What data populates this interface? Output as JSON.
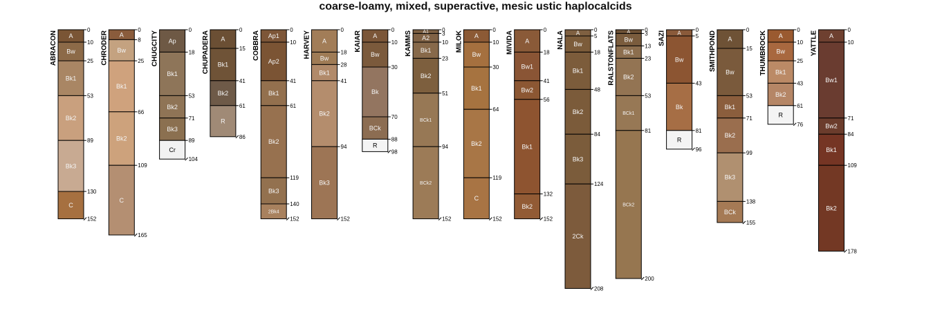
{
  "title": "coarse-loamy, mixed, superactive, mesic ustic haplocalcids",
  "profiles": [
    {
      "name": "ABRACON",
      "bottom": 152,
      "horizons": [
        {
          "name": "A",
          "top": 0,
          "bottom": 10,
          "color": "#7a5535"
        },
        {
          "name": "Bw",
          "top": 10,
          "bottom": 25,
          "color": "#8c6a48"
        },
        {
          "name": "Bk1",
          "top": 25,
          "bottom": 53,
          "color": "#a98664"
        },
        {
          "name": "Bk2",
          "top": 53,
          "bottom": 89,
          "color": "#c9a07e"
        },
        {
          "name": "Bk3",
          "top": 89,
          "bottom": 130,
          "color": "#c8aa92"
        },
        {
          "name": "C",
          "top": 130,
          "bottom": 152,
          "color": "#a67040"
        }
      ]
    },
    {
      "name": "CHRODER",
      "bottom": 165,
      "horizons": [
        {
          "name": "A",
          "top": 0,
          "bottom": 8,
          "color": "#8a5c3c"
        },
        {
          "name": "Bw",
          "top": 8,
          "bottom": 25,
          "color": "#c4a280"
        },
        {
          "name": "Bk1",
          "top": 25,
          "bottom": 66,
          "color": "#cfa27d"
        },
        {
          "name": "Bk2",
          "top": 66,
          "bottom": 109,
          "color": "#cda27c"
        },
        {
          "name": "C",
          "top": 109,
          "bottom": 165,
          "color": "#b48f72"
        }
      ]
    },
    {
      "name": "CHUGCITY",
      "bottom": 104,
      "horizons": [
        {
          "name": "Ap",
          "top": 0,
          "bottom": 18,
          "color": "#6e5945"
        },
        {
          "name": "Bk1",
          "top": 18,
          "bottom": 53,
          "color": "#8e7559"
        },
        {
          "name": "Bk2",
          "top": 53,
          "bottom": 71,
          "color": "#8f7456"
        },
        {
          "name": "Bk3",
          "top": 71,
          "bottom": 89,
          "color": "#8b7050"
        },
        {
          "name": "Cr",
          "top": 89,
          "bottom": 104,
          "color": "#f2f2f2"
        }
      ]
    },
    {
      "name": "CHUPADERA",
      "bottom": 86,
      "horizons": [
        {
          "name": "A",
          "top": 0,
          "bottom": 15,
          "color": "#6b4f34"
        },
        {
          "name": "Bk1",
          "top": 15,
          "bottom": 41,
          "color": "#6f5337"
        },
        {
          "name": "Bk2",
          "top": 41,
          "bottom": 61,
          "color": "#6e5a48"
        },
        {
          "name": "R",
          "top": 61,
          "bottom": 86,
          "color": "#a08a76"
        }
      ]
    },
    {
      "name": "COBBRA",
      "bottom": 152,
      "horizons": [
        {
          "name": "Ap1",
          "top": 0,
          "bottom": 10,
          "color": "#7d5638"
        },
        {
          "name": "Ap2",
          "top": 10,
          "bottom": 41,
          "color": "#7b5434"
        },
        {
          "name": "Bk1",
          "top": 41,
          "bottom": 61,
          "color": "#93704e"
        },
        {
          "name": "Bk2",
          "top": 61,
          "bottom": 119,
          "color": "#97714f"
        },
        {
          "name": "Bk3",
          "top": 119,
          "bottom": 140,
          "color": "#93714f"
        },
        {
          "name": "2Bk4",
          "top": 140,
          "bottom": 152,
          "color": "#a8815e"
        }
      ]
    },
    {
      "name": "HARVEY",
      "bottom": 152,
      "horizons": [
        {
          "name": "A",
          "top": 0,
          "bottom": 18,
          "color": "#a27d58"
        },
        {
          "name": "Bw",
          "top": 18,
          "bottom": 28,
          "color": "#9f7b55"
        },
        {
          "name": "Bk1",
          "top": 28,
          "bottom": 41,
          "color": "#b18a6a"
        },
        {
          "name": "Bk2",
          "top": 41,
          "bottom": 94,
          "color": "#b48d6d"
        },
        {
          "name": "Bk3",
          "top": 94,
          "bottom": 152,
          "color": "#9d7555"
        }
      ]
    },
    {
      "name": "KAIAR",
      "bottom": 98,
      "horizons": [
        {
          "name": "A",
          "top": 0,
          "bottom": 10,
          "color": "#7b5638"
        },
        {
          "name": "Bw",
          "top": 10,
          "bottom": 30,
          "color": "#7b5a3c"
        },
        {
          "name": "Bk",
          "top": 30,
          "bottom": 70,
          "color": "#937560"
        },
        {
          "name": "BCk",
          "top": 70,
          "bottom": 88,
          "color": "#8c6d52"
        },
        {
          "name": "R",
          "top": 88,
          "bottom": 98,
          "color": "#f4f4f4"
        }
      ]
    },
    {
      "name": "KAMMS",
      "bottom": 152,
      "horizons": [
        {
          "name": "A1",
          "top": 0,
          "bottom": 3,
          "color": "#7d6043"
        },
        {
          "name": "A2",
          "top": 3,
          "bottom": 10,
          "color": "#806245"
        },
        {
          "name": "Bk1",
          "top": 10,
          "bottom": 23,
          "color": "#87694a"
        },
        {
          "name": "Bk2",
          "top": 23,
          "bottom": 51,
          "color": "#7d5f3e"
        },
        {
          "name": "BCk1",
          "top": 51,
          "bottom": 94,
          "color": "#977855"
        },
        {
          "name": "BCk2",
          "top": 94,
          "bottom": 152,
          "color": "#9c7b57"
        }
      ]
    },
    {
      "name": "MILOK",
      "bottom": 152,
      "horizons": [
        {
          "name": "A",
          "top": 0,
          "bottom": 10,
          "color": "#8c5a35"
        },
        {
          "name": "Bw",
          "top": 10,
          "bottom": 30,
          "color": "#a5703f"
        },
        {
          "name": "Bk1",
          "top": 30,
          "bottom": 64,
          "color": "#a67340"
        },
        {
          "name": "Bk2",
          "top": 64,
          "bottom": 119,
          "color": "#a87646"
        },
        {
          "name": "C",
          "top": 119,
          "bottom": 152,
          "color": "#a87444"
        }
      ]
    },
    {
      "name": "MIVIDA",
      "bottom": 152,
      "horizons": [
        {
          "name": "A",
          "top": 0,
          "bottom": 18,
          "color": "#8a5a38"
        },
        {
          "name": "Bw1",
          "top": 18,
          "bottom": 41,
          "color": "#8a5535"
        },
        {
          "name": "Bw2",
          "top": 41,
          "bottom": 56,
          "color": "#8c5733"
        },
        {
          "name": "Bk1",
          "top": 56,
          "bottom": 132,
          "color": "#8e5430"
        },
        {
          "name": "Bk2",
          "top": 132,
          "bottom": 152,
          "color": "#925b35"
        }
      ]
    },
    {
      "name": "NALA",
      "bottom": 208,
      "horizons": [
        {
          "name": "A",
          "top": 0,
          "bottom": 5,
          "color": "#7f6041"
        },
        {
          "name": "Bw",
          "top": 5,
          "bottom": 18,
          "color": "#7c5c3a"
        },
        {
          "name": "Bk1",
          "top": 18,
          "bottom": 48,
          "color": "#7c5c3b"
        },
        {
          "name": "Bk2",
          "top": 48,
          "bottom": 84,
          "color": "#7b5b3a"
        },
        {
          "name": "Bk3",
          "top": 84,
          "bottom": 124,
          "color": "#7b5c3b"
        },
        {
          "name": "2Ck",
          "top": 124,
          "bottom": 208,
          "color": "#7d5b3c"
        }
      ]
    },
    {
      "name": "RALSTONFLATS",
      "bottom": 200,
      "horizons": [
        {
          "name": "A",
          "top": 0,
          "bottom": 3,
          "color": "#6e5236"
        },
        {
          "name": "Bw",
          "top": 3,
          "bottom": 13,
          "color": "#7a5c3d"
        },
        {
          "name": "Bk1",
          "top": 13,
          "bottom": 23,
          "color": "#8c6e4e"
        },
        {
          "name": "Bk2",
          "top": 23,
          "bottom": 53,
          "color": "#937453"
        },
        {
          "name": "BCk1",
          "top": 53,
          "bottom": 81,
          "color": "#977855"
        },
        {
          "name": "BCk2",
          "top": 81,
          "bottom": 200,
          "color": "#967650"
        }
      ]
    },
    {
      "name": "SAZI",
      "bottom": 96,
      "horizons": [
        {
          "name": "A",
          "top": 0,
          "bottom": 5,
          "color": "#8a5a3a"
        },
        {
          "name": "Bw",
          "top": 5,
          "bottom": 43,
          "color": "#8c5532"
        },
        {
          "name": "Bk",
          "top": 43,
          "bottom": 81,
          "color": "#a66e45"
        },
        {
          "name": "R",
          "top": 81,
          "bottom": 96,
          "color": "#f4f4f4"
        }
      ]
    },
    {
      "name": "SMITHPOND",
      "bottom": 155,
      "horizons": [
        {
          "name": "A",
          "top": 0,
          "bottom": 15,
          "color": "#6e5236"
        },
        {
          "name": "Bw",
          "top": 15,
          "bottom": 53,
          "color": "#7a5a3c"
        },
        {
          "name": "Bk1",
          "top": 53,
          "bottom": 71,
          "color": "#8b5e3d"
        },
        {
          "name": "Bk2",
          "top": 71,
          "bottom": 99,
          "color": "#9a6e4e"
        },
        {
          "name": "Bk3",
          "top": 99,
          "bottom": 138,
          "color": "#b09070"
        },
        {
          "name": "BCk",
          "top": 138,
          "bottom": 155,
          "color": "#a57a55"
        }
      ]
    },
    {
      "name": "THUMBROCK",
      "bottom": 76,
      "horizons": [
        {
          "name": "A",
          "top": 0,
          "bottom": 10,
          "color": "#9a5a30"
        },
        {
          "name": "Bw",
          "top": 10,
          "bottom": 25,
          "color": "#a8683f"
        },
        {
          "name": "Bk1",
          "top": 25,
          "bottom": 43,
          "color": "#bb8a66"
        },
        {
          "name": "Bk2",
          "top": 43,
          "bottom": 61,
          "color": "#b58666"
        },
        {
          "name": "R",
          "top": 61,
          "bottom": 76,
          "color": "#f4f4f4"
        }
      ]
    },
    {
      "name": "YATTLE",
      "bottom": 178,
      "horizons": [
        {
          "name": "A",
          "top": 0,
          "bottom": 10,
          "color": "#6e4030"
        },
        {
          "name": "Bw1",
          "top": 10,
          "bottom": 71,
          "color": "#6a3c30"
        },
        {
          "name": "Bw2",
          "top": 71,
          "bottom": 84,
          "color": "#6b3c2c"
        },
        {
          "name": "Bk1",
          "top": 84,
          "bottom": 109,
          "color": "#753524"
        },
        {
          "name": "Bk2",
          "top": 109,
          "bottom": 178,
          "color": "#733824"
        }
      ]
    }
  ]
}
